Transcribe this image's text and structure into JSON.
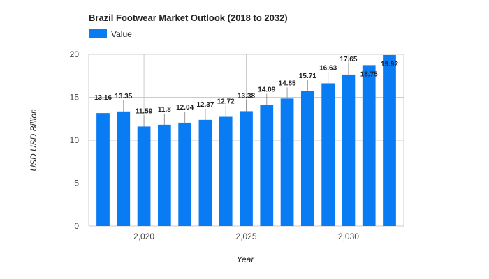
{
  "chart_data": {
    "type": "bar",
    "title": "Brazil Footwear Market Outlook (2018 to 2032)",
    "xlabel": "Year",
    "ylabel": "USD USD Billion",
    "legend": {
      "position": "top-left",
      "entries": [
        "Value"
      ]
    },
    "grid": true,
    "ylim": [
      0,
      20
    ],
    "yticks": [
      0,
      5,
      10,
      15,
      20
    ],
    "xlim": [
      2017.3,
      2032.7
    ],
    "xticks": [
      2020,
      2025,
      2030
    ],
    "xtick_labels": [
      "2,020",
      "2,025",
      "2,030"
    ],
    "series": [
      {
        "name": "Value",
        "color": "#0a7cf3",
        "x": [
          2018,
          2019,
          2020,
          2021,
          2022,
          2023,
          2024,
          2025,
          2026,
          2027,
          2028,
          2029,
          2030,
          2031,
          2032
        ],
        "values": [
          13.16,
          13.35,
          11.59,
          11.8,
          12.04,
          12.37,
          12.72,
          13.38,
          14.09,
          14.85,
          15.71,
          16.63,
          17.65,
          18.75,
          19.92
        ],
        "labels": [
          "13.16",
          "13.35",
          "11.59",
          "11.8",
          "12.04",
          "12.37",
          "12.72",
          "13.38",
          "14.09",
          "14.85",
          "15.71",
          "16.63",
          "17.65",
          "18.75",
          "19.92"
        ]
      }
    ]
  }
}
